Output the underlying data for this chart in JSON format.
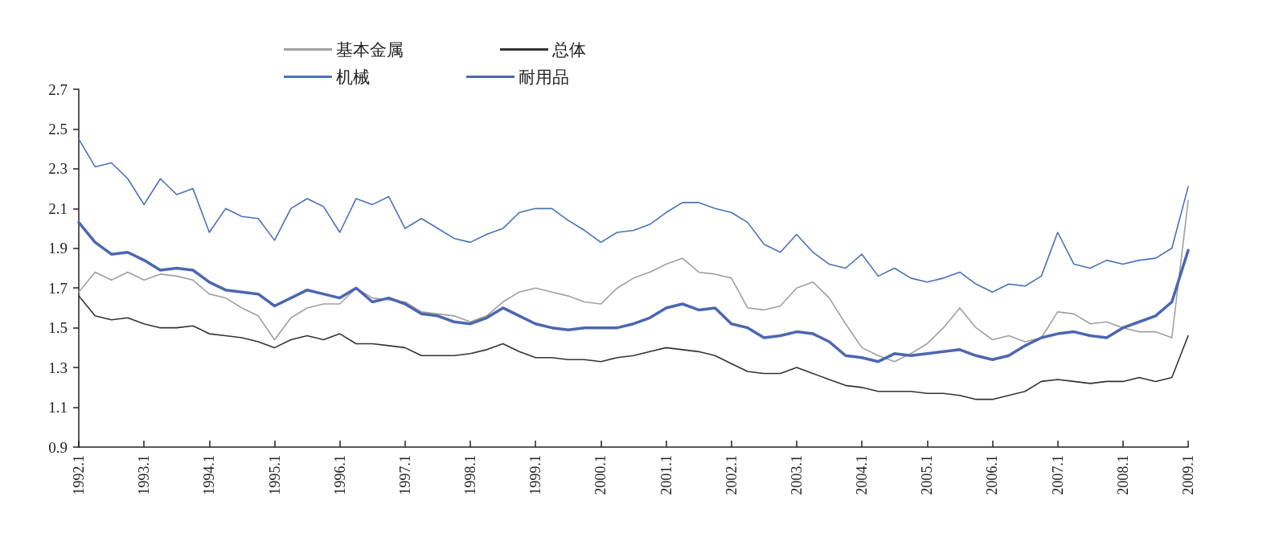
{
  "chart_data": {
    "type": "line",
    "categories": [
      "1992.1",
      null,
      null,
      null,
      "1993.1",
      null,
      null,
      null,
      "1994.1",
      null,
      null,
      null,
      "1995.1",
      null,
      null,
      null,
      "1996.1",
      null,
      null,
      null,
      "1997.1",
      null,
      null,
      null,
      "1998.1",
      null,
      null,
      null,
      "1999.1",
      null,
      null,
      null,
      "2000.1",
      null,
      null,
      null,
      "2001.1",
      null,
      null,
      null,
      "2002.1",
      null,
      null,
      null,
      "2003.1",
      null,
      null,
      null,
      "2004.1",
      null,
      null,
      null,
      "2005.1",
      null,
      null,
      null,
      "2006.1",
      null,
      null,
      null,
      "2007.1",
      null,
      null,
      null,
      "2008.1",
      null,
      null,
      null,
      "2009.1"
    ],
    "series": [
      {
        "name": "基本金属",
        "color": "#a0a0a0",
        "values": [
          1.68,
          1.78,
          1.74,
          1.78,
          1.74,
          1.77,
          1.76,
          1.74,
          1.67,
          1.65,
          1.6,
          1.56,
          1.44,
          1.55,
          1.6,
          1.62,
          1.62,
          1.7,
          1.65,
          1.64,
          1.63,
          1.58,
          1.57,
          1.56,
          1.53,
          1.56,
          1.63,
          1.68,
          1.7,
          1.68,
          1.66,
          1.63,
          1.62,
          1.7,
          1.75,
          1.78,
          1.82,
          1.85,
          1.78,
          1.77,
          1.75,
          1.6,
          1.59,
          1.61,
          1.7,
          1.73,
          1.65,
          1.52,
          1.4,
          1.36,
          1.33,
          1.37,
          1.42,
          1.5,
          1.6,
          1.5,
          1.44,
          1.46,
          1.43,
          1.45,
          1.58,
          1.57,
          1.52,
          1.53,
          1.5,
          1.48,
          1.48,
          1.45,
          2.14
        ]
      },
      {
        "name": "总体",
        "color": "#333333",
        "values": [
          1.66,
          1.56,
          1.54,
          1.55,
          1.52,
          1.5,
          1.5,
          1.51,
          1.47,
          1.46,
          1.45,
          1.43,
          1.4,
          1.44,
          1.46,
          1.44,
          1.47,
          1.42,
          1.42,
          1.41,
          1.4,
          1.36,
          1.36,
          1.36,
          1.37,
          1.39,
          1.42,
          1.38,
          1.35,
          1.35,
          1.34,
          1.34,
          1.33,
          1.35,
          1.36,
          1.38,
          1.4,
          1.39,
          1.38,
          1.36,
          1.32,
          1.28,
          1.27,
          1.27,
          1.3,
          1.27,
          1.24,
          1.21,
          1.2,
          1.18,
          1.18,
          1.18,
          1.17,
          1.17,
          1.16,
          1.14,
          1.14,
          1.16,
          1.18,
          1.23,
          1.24,
          1.23,
          1.22,
          1.23,
          1.23,
          1.25,
          1.23,
          1.25,
          1.46
        ]
      },
      {
        "name": "机械",
        "color": "#4a72b8",
        "values": [
          2.45,
          2.31,
          2.33,
          2.25,
          2.12,
          2.25,
          2.17,
          2.2,
          1.98,
          2.1,
          2.06,
          2.05,
          1.94,
          2.1,
          2.15,
          2.11,
          1.98,
          2.15,
          2.12,
          2.16,
          2.0,
          2.05,
          2.0,
          1.95,
          1.93,
          1.97,
          2.0,
          2.08,
          2.1,
          2.1,
          2.04,
          1.99,
          1.93,
          1.98,
          1.99,
          2.02,
          2.08,
          2.13,
          2.13,
          2.1,
          2.08,
          2.03,
          1.92,
          1.88,
          1.97,
          1.88,
          1.82,
          1.8,
          1.87,
          1.76,
          1.8,
          1.75,
          1.73,
          1.75,
          1.78,
          1.72,
          1.68,
          1.72,
          1.71,
          1.76,
          1.98,
          1.82,
          1.8,
          1.84,
          1.82,
          1.84,
          1.85,
          1.9,
          2.21
        ]
      },
      {
        "name": "耐用品",
        "color": "#4c66b0",
        "values": [
          2.03,
          1.93,
          1.87,
          1.88,
          1.84,
          1.79,
          1.8,
          1.79,
          1.73,
          1.69,
          1.68,
          1.67,
          1.61,
          1.65,
          1.69,
          1.67,
          1.65,
          1.7,
          1.63,
          1.65,
          1.62,
          1.57,
          1.56,
          1.53,
          1.52,
          1.55,
          1.6,
          1.56,
          1.52,
          1.5,
          1.49,
          1.5,
          1.5,
          1.5,
          1.52,
          1.55,
          1.6,
          1.62,
          1.59,
          1.6,
          1.52,
          1.5,
          1.45,
          1.46,
          1.48,
          1.47,
          1.43,
          1.36,
          1.35,
          1.33,
          1.37,
          1.36,
          1.37,
          1.38,
          1.39,
          1.36,
          1.34,
          1.36,
          1.41,
          1.45,
          1.47,
          1.48,
          1.46,
          1.45,
          1.5,
          1.53,
          1.56,
          1.63,
          1.89
        ]
      }
    ],
    "ylim": [
      0.9,
      2.7
    ],
    "yticks": [
      0.9,
      1.1,
      1.3,
      1.5,
      1.7,
      1.9,
      2.1,
      2.3,
      2.5,
      2.7
    ],
    "legend": "top",
    "grid": false,
    "marker": "none",
    "line_style": "solid"
  }
}
